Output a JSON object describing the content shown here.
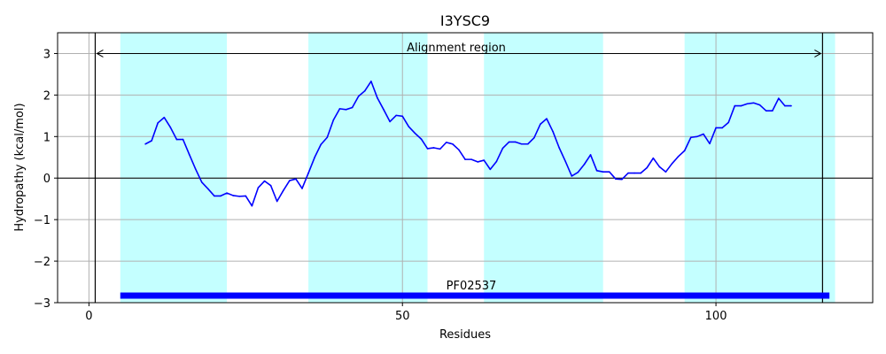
{
  "chart_data": {
    "type": "line",
    "title": "I3YSC9",
    "xlabel": "Residues",
    "ylabel": "Hydropathy (kcal/mol)",
    "xlim": [
      -5,
      125
    ],
    "ylim": [
      -3,
      3.5
    ],
    "xticks": [
      0,
      50,
      100
    ],
    "yticks": [
      -3,
      -2,
      -1,
      0,
      1,
      2,
      3
    ],
    "grid": true,
    "colors": {
      "line": "#0000ff",
      "band": "#c4ffff",
      "domain_bar": "#0000ff",
      "grid": "#b0b0b0",
      "axis": "#000000"
    },
    "series": [
      {
        "x": [
          9,
          10,
          11,
          12,
          13,
          14,
          15,
          16,
          17,
          18,
          19,
          20,
          21,
          22,
          23,
          24,
          25,
          26,
          27,
          28,
          29,
          30,
          31,
          32,
          33,
          34,
          35,
          36,
          37,
          38,
          39,
          40,
          41,
          42,
          43,
          44,
          45,
          46,
          47,
          48,
          49,
          50,
          51,
          52,
          53,
          54,
          55,
          56,
          57,
          58,
          59,
          60,
          61,
          62,
          63,
          64,
          65,
          66,
          67,
          68,
          69,
          70,
          71,
          72,
          73,
          74,
          75,
          76,
          77,
          78,
          79,
          80,
          81,
          82,
          83,
          84,
          85,
          86,
          87,
          88,
          89,
          90,
          91,
          92,
          93,
          94,
          95,
          96,
          97,
          98,
          99,
          100,
          101,
          102,
          103,
          104,
          105,
          106,
          107,
          108,
          109,
          110,
          111,
          112
        ],
        "values": [
          0.82,
          0.9,
          1.33,
          1.46,
          1.22,
          0.93,
          0.93,
          0.57,
          0.22,
          -0.1,
          -0.26,
          -0.43,
          -0.43,
          -0.36,
          -0.42,
          -0.44,
          -0.43,
          -0.67,
          -0.23,
          -0.07,
          -0.18,
          -0.56,
          -0.3,
          -0.06,
          -0.02,
          -0.25,
          0.12,
          0.5,
          0.81,
          0.98,
          1.4,
          1.67,
          1.65,
          1.7,
          1.97,
          2.1,
          2.33,
          1.93,
          1.65,
          1.36,
          1.51,
          1.49,
          1.24,
          1.08,
          0.94,
          0.71,
          0.73,
          0.7,
          0.86,
          0.82,
          0.68,
          0.45,
          0.45,
          0.39,
          0.43,
          0.21,
          0.4,
          0.72,
          0.87,
          0.87,
          0.82,
          0.82,
          0.97,
          1.3,
          1.43,
          1.12,
          0.73,
          0.4,
          0.05,
          0.14,
          0.33,
          0.56,
          0.18,
          0.15,
          0.15,
          -0.02,
          -0.03,
          0.12,
          0.12,
          0.12,
          0.25,
          0.48,
          0.27,
          0.15,
          0.35,
          0.52,
          0.66,
          0.98,
          1.0,
          1.06,
          0.83,
          1.21,
          1.21,
          1.34,
          1.74,
          1.74,
          1.79,
          1.81,
          1.76,
          1.62,
          1.62,
          1.92,
          1.74,
          1.74
        ]
      }
    ],
    "bands": [
      {
        "x_start": 5,
        "x_end": 22
      },
      {
        "x_start": 35,
        "x_end": 54
      },
      {
        "x_start": 63,
        "x_end": 82
      },
      {
        "x_start": 95,
        "x_end": 119
      }
    ],
    "vlines": [
      1,
      117
    ],
    "alignment": {
      "label": "Alignment region",
      "x_start": 1,
      "x_end": 117,
      "y": 3
    },
    "domain_bar": {
      "label": "PF02537",
      "x_start": 5,
      "x_end": 117,
      "y": -2.83
    }
  }
}
